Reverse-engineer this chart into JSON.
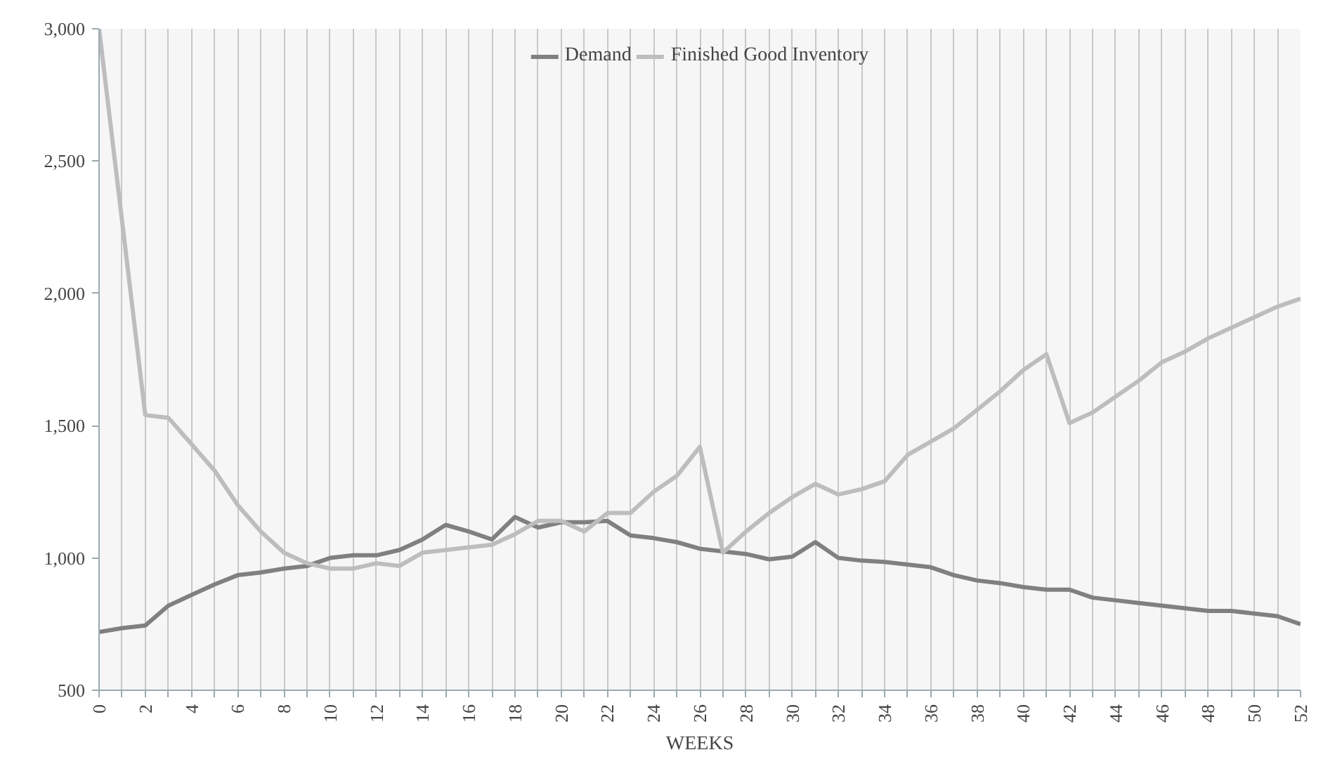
{
  "chart_data": {
    "type": "line",
    "xlabel": "WEEKS",
    "x": [
      0,
      1,
      2,
      3,
      4,
      5,
      6,
      7,
      8,
      9,
      10,
      11,
      12,
      13,
      14,
      15,
      16,
      17,
      18,
      19,
      20,
      21,
      22,
      23,
      24,
      25,
      26,
      27,
      28,
      29,
      30,
      31,
      32,
      33,
      34,
      35,
      36,
      37,
      38,
      39,
      40,
      41,
      42,
      43,
      44,
      45,
      46,
      47,
      48,
      49,
      50,
      51,
      52
    ],
    "series": [
      {
        "name": "Demand",
        "color": "#808080",
        "values": [
          720,
          735,
          745,
          820,
          860,
          900,
          935,
          945,
          960,
          970,
          1000,
          1010,
          1010,
          1030,
          1070,
          1125,
          1100,
          1070,
          1155,
          1115,
          1135,
          1135,
          1140,
          1085,
          1075,
          1060,
          1035,
          1025,
          1015,
          995,
          1005,
          1060,
          1000,
          990,
          985,
          975,
          965,
          935,
          915,
          905,
          890,
          880,
          880,
          850,
          840,
          830,
          820,
          810,
          800,
          800,
          790,
          780,
          750
        ]
      },
      {
        "name": "Finished Good Inventory",
        "color": "#bdbdbd",
        "values": [
          3000,
          2270,
          1540,
          1530,
          1430,
          1330,
          1200,
          1100,
          1020,
          980,
          960,
          960,
          980,
          970,
          1020,
          1030,
          1040,
          1050,
          1090,
          1140,
          1140,
          1100,
          1170,
          1170,
          1250,
          1310,
          1420,
          1020,
          1100,
          1170,
          1230,
          1280,
          1240,
          1260,
          1290,
          1390,
          1440,
          1490,
          1560,
          1630,
          1710,
          1770,
          1510,
          1550,
          1610,
          1670,
          1740,
          1780,
          1830,
          1870,
          1910,
          1950,
          1980
        ]
      }
    ],
    "xlim": [
      0,
      52
    ],
    "xticks": [
      0,
      {
        "value": 1,
        "label": null
      },
      2,
      {
        "value": 3,
        "label": null
      },
      4,
      {
        "value": 5,
        "label": null
      },
      6,
      {
        "value": 7,
        "label": null
      },
      8,
      {
        "value": 9,
        "label": null
      },
      10,
      {
        "value": 11,
        "label": null
      },
      12,
      {
        "value": 13,
        "label": null
      },
      14,
      {
        "value": 15,
        "label": null
      },
      16,
      {
        "value": 17,
        "label": null
      },
      18,
      {
        "value": 19,
        "label": null
      },
      20,
      {
        "value": 21,
        "label": null
      },
      22,
      {
        "value": 23,
        "label": null
      },
      24,
      {
        "value": 25,
        "label": null
      },
      26,
      {
        "value": 27,
        "label": null
      },
      28,
      {
        "value": 29,
        "label": null
      },
      30,
      {
        "value": 31,
        "label": null
      },
      32,
      {
        "value": 33,
        "label": null
      },
      34,
      {
        "value": 35,
        "label": null
      },
      36,
      {
        "value": 37,
        "label": null
      },
      38,
      {
        "value": 39,
        "label": null
      },
      40,
      {
        "value": 41,
        "label": null
      },
      42,
      {
        "value": 43,
        "label": null
      },
      44,
      {
        "value": 45,
        "label": null
      },
      46,
      {
        "value": 47,
        "label": null
      },
      48,
      {
        "value": 49,
        "label": null
      },
      50,
      {
        "value": 51,
        "label": null
      },
      52
    ],
    "ylim": [
      500,
      3000
    ],
    "yticks": [
      {
        "value": 500,
        "label": "500"
      },
      {
        "value": 1000,
        "label": "1,000"
      },
      {
        "value": 1500,
        "label": "1,500"
      },
      {
        "value": 2000,
        "label": "2,000"
      },
      {
        "value": 2500,
        "label": "2,500"
      },
      {
        "value": 3000,
        "label": "3,000"
      }
    ],
    "grid": "x",
    "legend": "top",
    "marker": "none",
    "line_style": "solid"
  }
}
